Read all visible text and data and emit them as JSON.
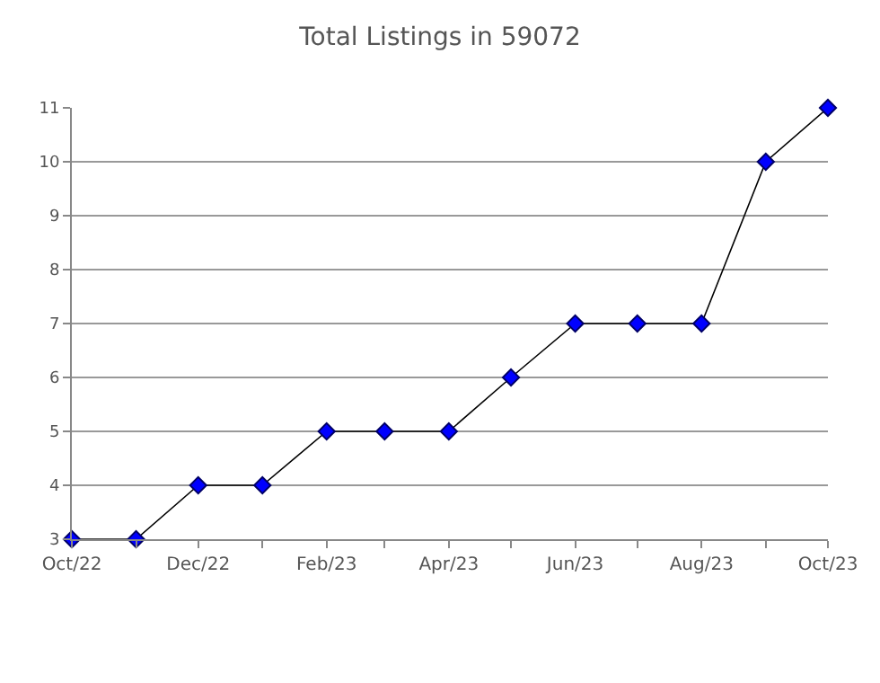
{
  "chart_data": {
    "type": "line",
    "title": "Total Listings in 59072",
    "x": [
      "2022-10",
      "2022-11",
      "2022-12",
      "2023-01",
      "2023-02",
      "2023-03",
      "2023-04",
      "2023-05",
      "2023-06",
      "2023-07",
      "2023-08",
      "2023-09",
      "2023-10"
    ],
    "series": [
      {
        "color": "#0000ff",
        "values": [
          3,
          3,
          4,
          4,
          5,
          5,
          5,
          6,
          7,
          7,
          7,
          10,
          11
        ]
      }
    ],
    "xlim": [
      "2022-10",
      "2023-10"
    ],
    "xticks": [
      {
        "value": "2022-10",
        "label": "Oct/22"
      },
      {
        "value": "2022-11",
        "label": null
      },
      {
        "value": "2022-12",
        "label": "Dec/22"
      },
      {
        "value": "2023-01",
        "label": null
      },
      {
        "value": "2023-02",
        "label": "Feb/23"
      },
      {
        "value": "2023-03",
        "label": null
      },
      {
        "value": "2023-04",
        "label": "Apr/23"
      },
      {
        "value": "2023-05",
        "label": null
      },
      {
        "value": "2023-06",
        "label": "Jun/23"
      },
      {
        "value": "2023-07",
        "label": null
      },
      {
        "value": "2023-08",
        "label": "Aug/23"
      },
      {
        "value": "2023-09",
        "label": null
      },
      {
        "value": "2023-10",
        "label": "Oct/23"
      }
    ],
    "ylim": [
      3,
      11
    ],
    "yticks": [
      3,
      4,
      5,
      6,
      7,
      8,
      9,
      10,
      11
    ],
    "grid": "y",
    "marker": "diamond",
    "line_style": "solid"
  }
}
